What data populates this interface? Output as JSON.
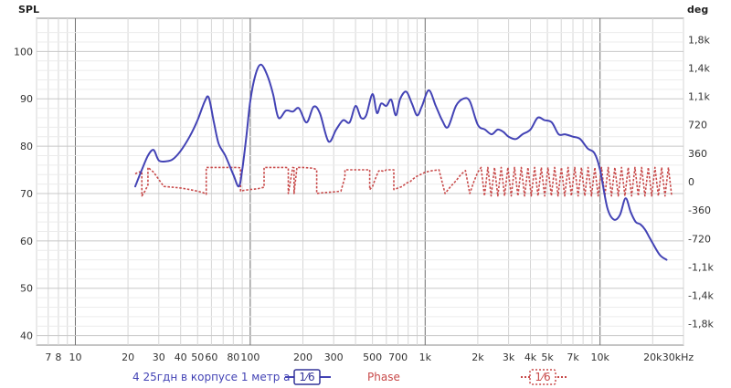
{
  "chart_data": {
    "type": "line",
    "title": "",
    "x_scale": "log",
    "xlim": [
      6,
      30000
    ],
    "x_tick_labels": [
      "7",
      "8",
      "10",
      "20",
      "30",
      "40",
      "50",
      "60",
      "80",
      "100",
      "200",
      "300",
      "500",
      "700",
      "1k",
      "2k",
      "3k",
      "4k",
      "5k",
      "7k",
      "10k",
      "20k",
      "30kHz"
    ],
    "x_tick_values": [
      7,
      8,
      10,
      20,
      30,
      40,
      50,
      60,
      80,
      100,
      200,
      300,
      500,
      700,
      1000,
      2000,
      3000,
      4000,
      5000,
      7000,
      10000,
      20000,
      30000
    ],
    "y_left": {
      "label": "SPL",
      "lim": [
        38,
        107
      ],
      "ticks": [
        40,
        50,
        60,
        70,
        80,
        90,
        100
      ]
    },
    "y_right": {
      "label": "deg",
      "lim": [
        -2070,
        2070
      ],
      "ticks": [
        1800,
        1440,
        1080,
        720,
        360,
        0,
        -360,
        -720,
        -1080,
        -1440,
        -1800
      ],
      "tick_labels": [
        "1,8k",
        "1,4k",
        "1,1k",
        "720",
        "360",
        "0",
        "-360",
        "-720",
        "-1,1k",
        "-1,4k",
        "-1,8k"
      ]
    },
    "grid": true,
    "series": [
      {
        "name": "4 25гдн в корпусе 1 метр а",
        "axis": "left",
        "color": "#4343b5",
        "smoothing": "1/6",
        "x": [
          22,
          24,
          26,
          28,
          30,
          33,
          36,
          40,
          45,
          50,
          55,
          58,
          62,
          66,
          72,
          80,
          86,
          90,
          95,
          100,
          107,
          115,
          125,
          135,
          145,
          160,
          175,
          190,
          210,
          230,
          250,
          280,
          310,
          340,
          370,
          400,
          430,
          460,
          500,
          530,
          560,
          600,
          640,
          680,
          720,
          780,
          840,
          900,
          960,
          1050,
          1150,
          1250,
          1350,
          1500,
          1650,
          1800,
          2000,
          2200,
          2400,
          2600,
          2800,
          3000,
          3300,
          3600,
          4000,
          4400,
          4800,
          5300,
          5800,
          6300,
          7000,
          7700,
          8500,
          9300,
          10000,
          11000,
          12000,
          13000,
          14000,
          15000,
          16000,
          17000,
          18000,
          19000,
          20000,
          22000,
          24000
        ],
        "y": [
          71.5,
          75,
          78,
          79.2,
          77,
          76.8,
          77.2,
          79,
          82,
          85.5,
          89.5,
          90.2,
          85,
          80.5,
          78,
          74,
          71.5,
          75,
          82,
          89.5,
          95,
          97.2,
          95,
          91,
          86,
          87.5,
          87.3,
          88,
          85,
          88.3,
          87,
          81,
          83.5,
          85.5,
          85,
          88.5,
          86,
          86.5,
          91,
          87,
          89,
          88.5,
          89.8,
          86.5,
          90,
          91.5,
          89,
          86.5,
          88.5,
          91.8,
          88.5,
          85.5,
          84,
          88.5,
          90,
          89.5,
          84.5,
          83.5,
          82.5,
          83.5,
          83,
          82,
          81.5,
          82.5,
          83.5,
          86,
          85.5,
          85,
          82.5,
          82.5,
          82,
          81.5,
          79.5,
          78.5,
          75,
          67,
          64.5,
          65.5,
          69,
          66,
          64,
          63.5,
          62.5,
          61,
          59.5,
          57,
          56
        ]
      },
      {
        "name": "Phase",
        "axis": "right",
        "color": "#c84a4a",
        "smoothing": "1/6",
        "x": [
          22,
          23,
          24,
          24.01,
          25,
          26,
          26.01,
          28,
          32,
          36,
          40,
          45,
          50,
          54,
          56,
          56.01,
          60,
          70,
          80,
          85,
          88,
          88.01,
          92,
          100,
          110,
          115,
          120,
          120.01,
          140,
          160,
          165,
          165.01,
          175,
          178,
          178.01,
          185,
          200,
          230,
          240,
          240.01,
          260,
          300,
          330,
          345,
          348,
          348.01,
          360,
          400,
          450,
          480,
          482,
          482.01,
          500,
          520,
          540,
          550,
          560,
          580,
          600,
          640,
          660,
          662,
          662.01,
          700,
          740,
          780,
          820,
          860,
          900,
          960,
          1000,
          1100,
          1200,
          1300,
          1400,
          1500,
          1600,
          1700,
          1800,
          1900,
          2000
        ],
        "y": [
          100,
          120,
          130,
          -180,
          -120,
          -40,
          180,
          120,
          -60,
          -70,
          -80,
          -100,
          -120,
          -140,
          -160,
          180,
          180,
          180,
          180,
          180,
          175,
          -120,
          -110,
          -100,
          -90,
          -80,
          -70,
          180,
          180,
          180,
          175,
          -150,
          180,
          175,
          -150,
          180,
          180,
          170,
          150,
          -150,
          -140,
          -130,
          -120,
          30,
          60,
          150,
          150,
          150,
          150,
          150,
          150,
          -100,
          -60,
          40,
          130,
          145,
          140,
          130,
          150,
          150,
          150,
          150,
          -100,
          -80,
          -60,
          -20,
          0,
          40,
          70,
          100,
          120,
          140,
          150,
          -150,
          -60,
          10,
          90,
          140,
          -150,
          0,
          120
        ]
      }
    ],
    "legend": {
      "placement": "bottom",
      "entries": [
        {
          "label": "4 25гдн в корпусе 1 метр а",
          "smoothing": "1⁄6",
          "color": "#4343b5"
        },
        {
          "label": "Phase",
          "smoothing": "1⁄6",
          "color": "#c84a4a"
        }
      ]
    }
  }
}
